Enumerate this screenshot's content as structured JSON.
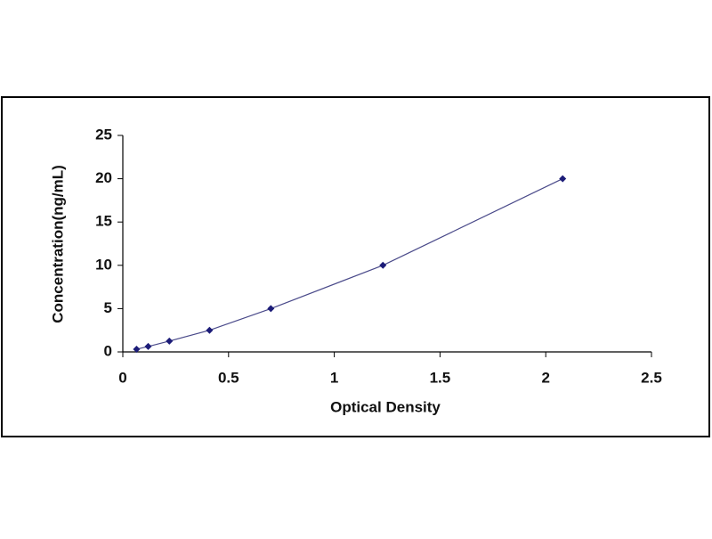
{
  "chart_data": {
    "type": "line",
    "markers": "diamond",
    "x_label": "Optical Density",
    "y_label": "Concentration(ng/mL)",
    "x": [
      0.065,
      0.12,
      0.22,
      0.41,
      0.7,
      1.23,
      2.08
    ],
    "series": [
      {
        "color": "#1c1c78",
        "line_color": "#4a4a8a",
        "values": [
          0.3125,
          0.625,
          1.25,
          2.5,
          5,
          10,
          20
        ]
      }
    ],
    "xlim": [
      0,
      2.5
    ],
    "xticks": [
      0,
      0.5,
      1,
      1.5,
      2,
      2.5
    ],
    "ylim": [
      0,
      25
    ],
    "yticks": [
      0,
      5,
      10,
      15,
      20,
      25
    ],
    "grid": false
  }
}
